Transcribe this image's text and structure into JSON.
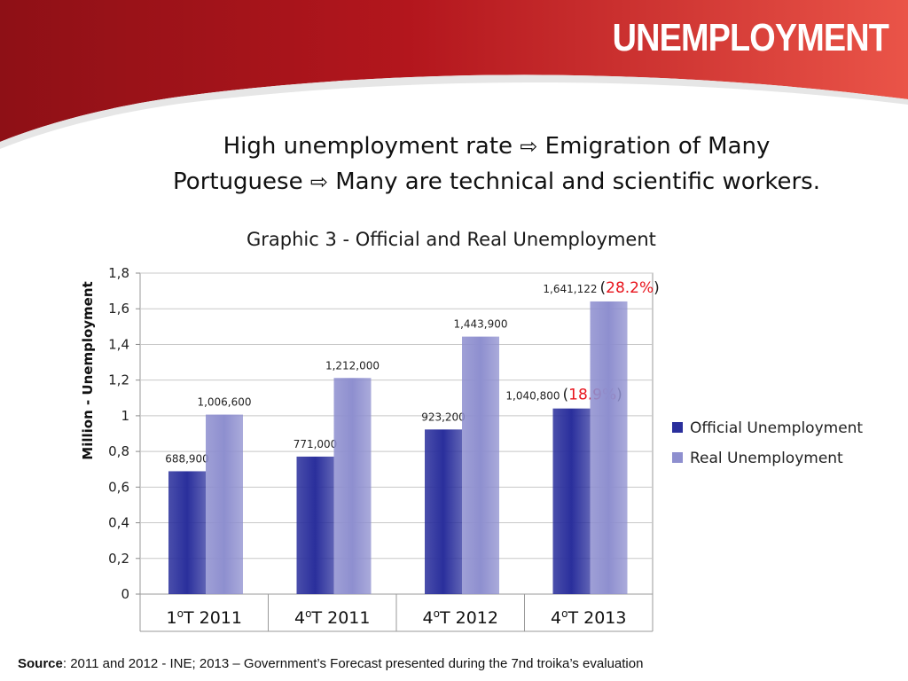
{
  "slide": {
    "title": "UNEMPLOYMENT",
    "subtitle": {
      "line1_a": "High unemployment rate",
      "line1_b": "Emigration of Many",
      "line2_a": "Portuguese",
      "line2_b": "Many are technical and scientific workers.",
      "arrow_icon": "right-outline-arrow-icon"
    },
    "source": {
      "label": "Source",
      "text": ": 2011 and 2012 - INE; 2013 – Government’s Forecast presented during the 7nd troika’s evaluation"
    },
    "colors": {
      "header_red": "#b71c1c",
      "header_dark": "#7a0f14"
    }
  },
  "chart_data": {
    "type": "bar",
    "title": "Graphic 3 - Official and Real Unemployment",
    "ylabel": "Million - Unemployment",
    "xlabel": "",
    "ylim": [
      0,
      1.8
    ],
    "ytick_step": 0.2,
    "ytick_labels": [
      "0",
      "0,2",
      "0,4",
      "0,6",
      "0,8",
      "1",
      "1,2",
      "1,4",
      "1,6",
      "1,8"
    ],
    "categories": [
      {
        "prefix": "1",
        "sup": "o",
        "suffix": "T 2011"
      },
      {
        "prefix": "4",
        "sup": "o",
        "suffix": "T 2011"
      },
      {
        "prefix": "4",
        "sup": "o",
        "suffix": "T 2012"
      },
      {
        "prefix": "4",
        "sup": "o",
        "suffix": "T 2013"
      }
    ],
    "series": [
      {
        "name": "Official Unemployment",
        "color": "#2a2f9c",
        "values": [
          0.6889,
          0.771,
          0.9232,
          1.0408
        ],
        "labels": [
          "688,900",
          "771,000",
          "923,200",
          "1,040,800"
        ]
      },
      {
        "name": "Real Unemployment",
        "color": "#8e8fcf",
        "values": [
          1.0066,
          1.212,
          1.4439,
          1.641122
        ],
        "labels": [
          "1,006,600",
          "1,212,000",
          "1,443,900",
          "1,641,122"
        ]
      }
    ],
    "annotations": [
      {
        "series": 0,
        "index": 3,
        "text": "18.9%"
      },
      {
        "series": 1,
        "index": 3,
        "text": "28.2%"
      }
    ],
    "annotation_color": "#e8141c",
    "grid": true,
    "legend_position": "right"
  }
}
